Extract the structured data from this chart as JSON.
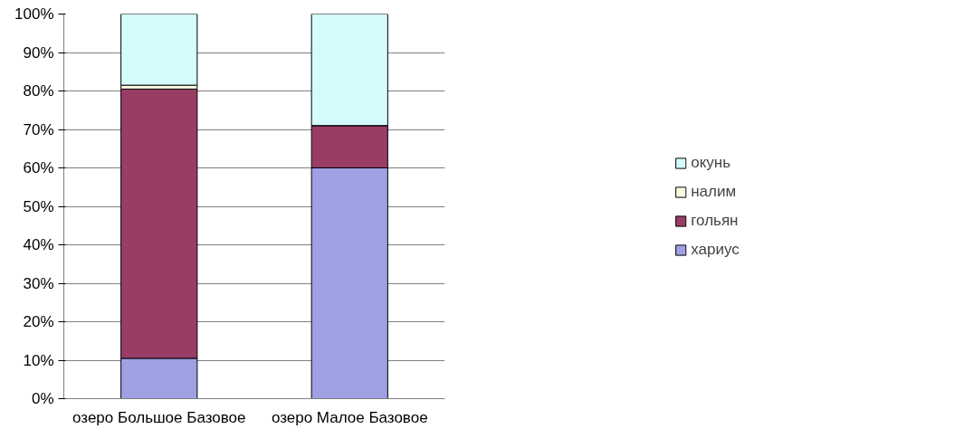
{
  "chart_data": {
    "type": "bar",
    "stacked": true,
    "categories": [
      "озеро Большое Базовое",
      "озеро Малое Базовое"
    ],
    "series": [
      {
        "name": "хариус",
        "color": "#a0a0e4",
        "values": [
          10.5,
          60
        ]
      },
      {
        "name": "гольян",
        "color": "#993d66",
        "values": [
          70,
          11
        ]
      },
      {
        "name": "налим",
        "color": "#fcfce0",
        "values": [
          1,
          0
        ]
      },
      {
        "name": "окунь",
        "color": "#d4fcfc",
        "values": [
          18.5,
          29
        ]
      }
    ],
    "ylim": [
      0,
      100
    ],
    "yticks": [
      {
        "value": 0,
        "label": "0%"
      },
      {
        "value": 10,
        "label": "10%"
      },
      {
        "value": 20,
        "label": "20%"
      },
      {
        "value": 30,
        "label": "30%"
      },
      {
        "value": 40,
        "label": "40%"
      },
      {
        "value": 50,
        "label": "50%"
      },
      {
        "value": 60,
        "label": "60%"
      },
      {
        "value": 70,
        "label": "70%"
      },
      {
        "value": 80,
        "label": "80%"
      },
      {
        "value": 90,
        "label": "90%"
      },
      {
        "value": 100,
        "label": "100%"
      }
    ],
    "grid": "y",
    "legend": "right"
  }
}
